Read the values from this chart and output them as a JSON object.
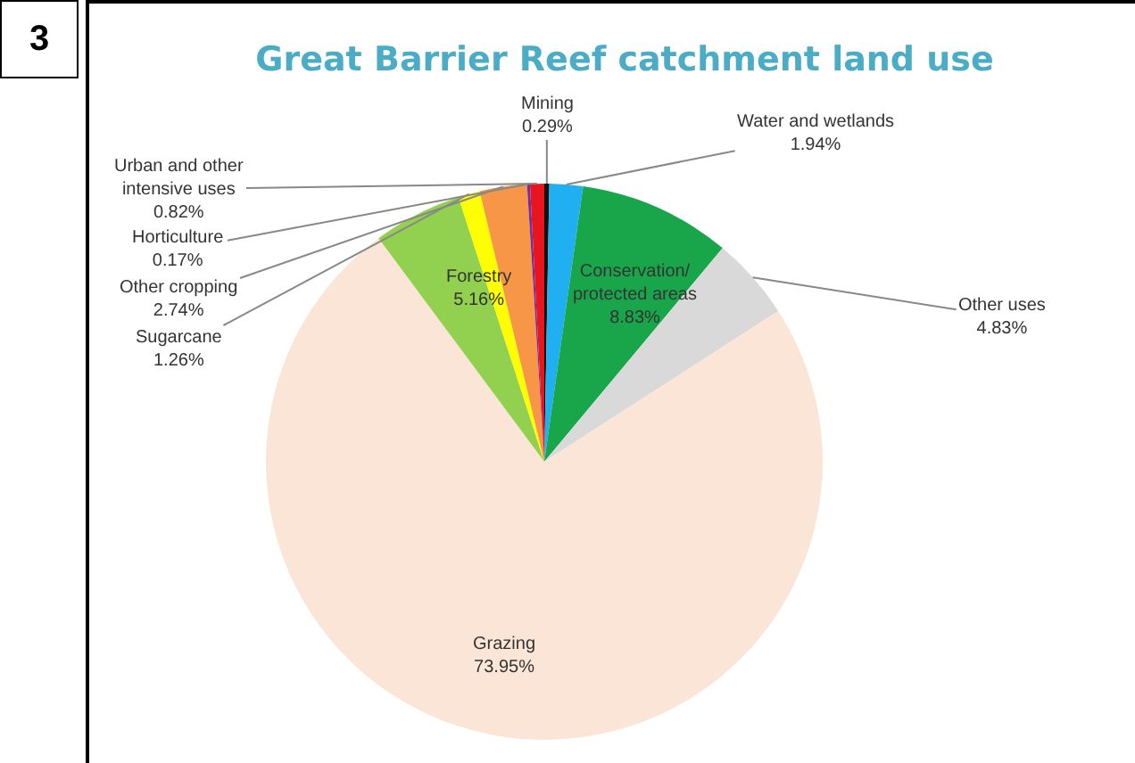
{
  "chart_data": {
    "type": "pie",
    "title": "Great Barrier Reef catchment land use",
    "categories": [
      "Mining",
      "Water and wetlands",
      "Conservation/protected areas",
      "Other uses",
      "Grazing",
      "Forestry",
      "Sugarcane",
      "Other cropping",
      "Horticulture",
      "Urban and other intensive uses"
    ],
    "values": [
      0.29,
      1.94,
      8.83,
      4.83,
      73.95,
      5.16,
      1.26,
      2.74,
      0.17,
      0.82
    ],
    "value_labels": [
      "0.29%",
      "1.94%",
      "8.83%",
      "4.83%",
      "73.95%",
      "5.16%",
      "1.26%",
      "2.74%",
      "0.17%",
      "0.82%"
    ],
    "colors": [
      "#111111",
      "#20aff0",
      "#19a64b",
      "#d9d9d9",
      "#fbe5d6",
      "#92d050",
      "#ffff00",
      "#f79646",
      "#7030a0",
      "#e8141e"
    ],
    "annotations": [
      "3"
    ]
  }
}
